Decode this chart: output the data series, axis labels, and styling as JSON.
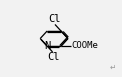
{
  "bg_color": "#f2f2f2",
  "bond_color": "#000000",
  "figsize": [
    1.22,
    0.77
  ],
  "dpi": 100,
  "xlim": [
    0.0,
    1.0
  ],
  "ylim": [
    0.0,
    1.0
  ],
  "font_size": 7.5,
  "coome_font_size": 6.5
}
